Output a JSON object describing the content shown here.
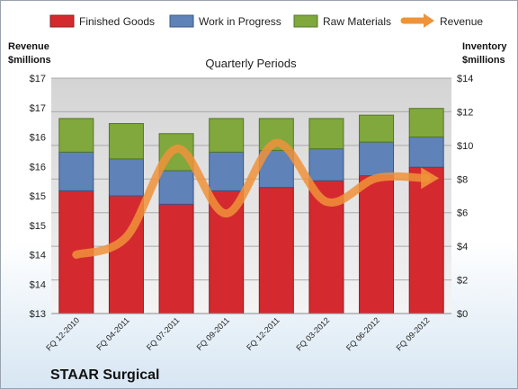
{
  "chart_data": {
    "type": "bar",
    "stacked": true,
    "subtitle": "Quarterly Periods",
    "company": "STAAR Surgical",
    "left_axis_title": [
      "Revenue",
      "$millions"
    ],
    "right_axis_title": [
      "Inventory",
      "$millions"
    ],
    "left_ticks": [
      "$13",
      "$14",
      "$14",
      "$15",
      "$15",
      "$16",
      "$16",
      "$17",
      "$17"
    ],
    "right_ticks": [
      "$0",
      "$2",
      "$4",
      "$6",
      "$8",
      "$10",
      "$12",
      "$14"
    ],
    "right_ylim": [
      0,
      14
    ],
    "left_ylim": [
      13,
      17
    ],
    "categories": [
      "FQ 12-2010",
      "FQ 04-2011",
      "FQ 07-2011",
      "FQ 09-2011",
      "FQ 12-2011",
      "FQ 03-2012",
      "FQ 06-2012",
      "FQ 09-2012"
    ],
    "series": [
      {
        "name": "Finished Goods",
        "color": "#d42a2f",
        "values": [
          7.3,
          7.0,
          6.5,
          7.3,
          7.5,
          7.9,
          8.2,
          8.7
        ]
      },
      {
        "name": "Work in Progress",
        "color": "#5f82b8",
        "values": [
          2.3,
          2.2,
          2.0,
          2.3,
          2.2,
          1.9,
          2.0,
          1.8
        ]
      },
      {
        "name": "Raw Materials",
        "color": "#80a83c",
        "values": [
          2.0,
          2.1,
          2.2,
          2.0,
          1.9,
          1.8,
          1.6,
          1.7
        ]
      }
    ],
    "revenue": {
      "name": "Revenue",
      "color": "#f0923a",
      "values": [
        14.0,
        14.3,
        15.8,
        14.7,
        15.9,
        14.9,
        15.3,
        15.3
      ]
    },
    "plot_background": "#c8c8c8",
    "grid": true,
    "legend_position": "top"
  }
}
